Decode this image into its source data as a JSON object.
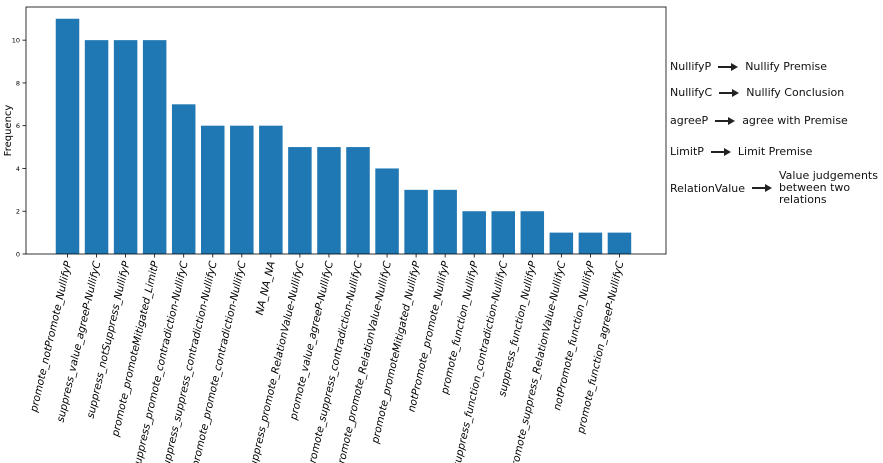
{
  "chart_data": {
    "type": "bar",
    "ylabel": "Frequency",
    "xlabel": "",
    "title": "",
    "ylim": [
      0,
      11.55
    ],
    "yticks": [
      0,
      2,
      4,
      6,
      8,
      10
    ],
    "grid": false,
    "bar_color": "#1f77b4",
    "categories": [
      "promote_notPromote_NullifyP",
      "suppress_value_agreeP-NullifyC",
      "suppress_notSuppress_NullifyP",
      "promote_promoteMitigated_LimitP",
      "suppress_promote_contradiction-NullifyC",
      "suppress_suppress_contradiction-NullifyC",
      "promote_promote_contradiction-NullifyC",
      "NA_NA_NA",
      "suppress_promote_RelationValue-NullifyC",
      "promote_value_agreeP-NullifyC",
      "promote_suppress_contradiction-NullifyC",
      "promote_promote_RelationValue-NullifyC",
      "promote_promoteMitigated_NullifyP",
      "notPromote_promote_NullifyP",
      "promote_function_NullifyP",
      "suppress_function_contradiction-NullifyC",
      "suppress_function_NullifyP",
      "promote_suppress_RelationValue-NullifyC",
      "notPromote_function_NullifyP",
      "promote_function_agreeP-NullifyC"
    ],
    "values": [
      11,
      10,
      10,
      10,
      7,
      6,
      6,
      6,
      5,
      5,
      5,
      4,
      3,
      3,
      2,
      2,
      2,
      1,
      1,
      1
    ]
  },
  "legend": [
    {
      "abbr": "NullifyP",
      "desc": "Nullify Premise"
    },
    {
      "abbr": "NullifyC",
      "desc": "Nullify Conclusion"
    },
    {
      "abbr": "agreeP",
      "desc": "agree with Premise"
    },
    {
      "abbr": "LimitP",
      "desc": "Limit Premise"
    },
    {
      "abbr": "RelationValue",
      "desc": "Value judgements between two relations"
    }
  ]
}
